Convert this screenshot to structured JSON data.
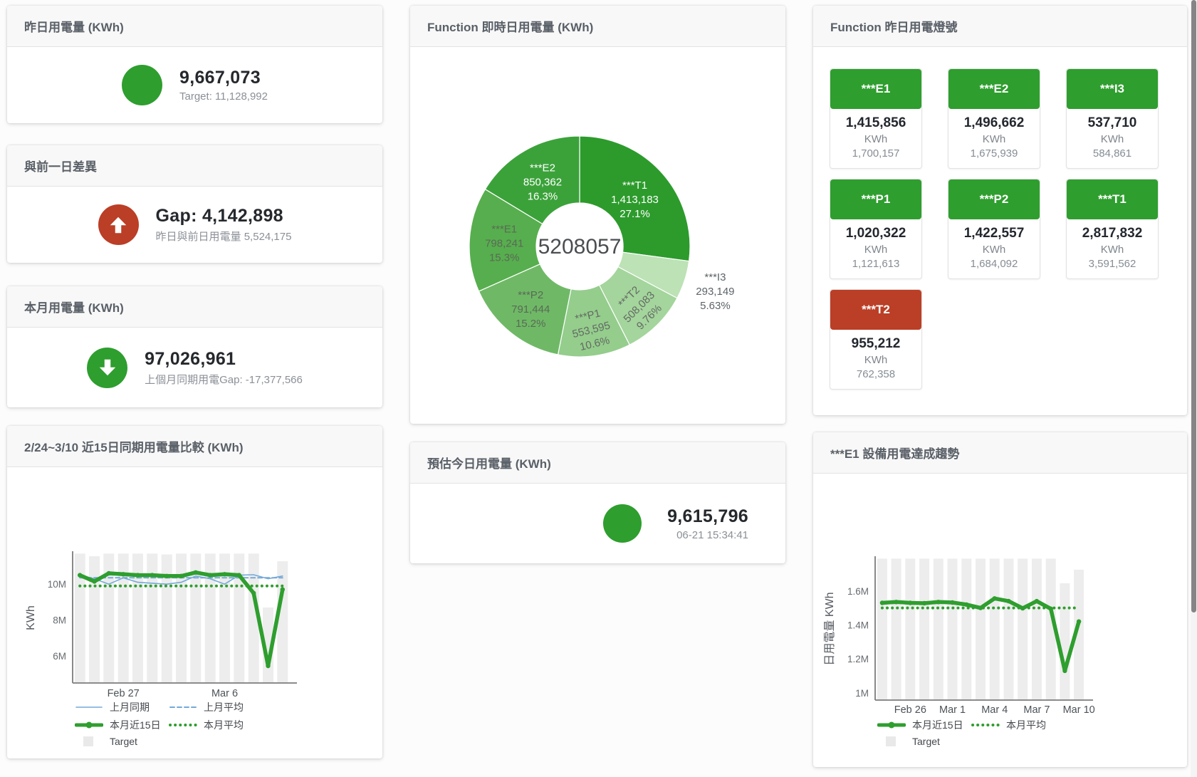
{
  "cards": {
    "yesterday": {
      "title": "昨日用電量 (KWh)",
      "value": "9,667,073",
      "subtitle": "Target: 11,128,992"
    },
    "day_gap": {
      "title": "與前一日差異",
      "value": "Gap: 4,142,898",
      "subtitle": "昨日與前日用電量 5,524,175"
    },
    "month": {
      "title": "本月用電量 (KWh)",
      "value": "97,026,961",
      "subtitle": "上個月同期用電Gap: -17,377,566"
    },
    "compare": {
      "title": "2/24~3/10 近15日同期用電量比較 (KWh)"
    },
    "realtime": {
      "title": "Function 即時日用電量 (KWh)"
    },
    "estimate": {
      "title": "預估今日用電量 (KWh)",
      "value": "9,615,796",
      "subtitle": "06-21 15:34:41"
    },
    "lights": {
      "title": "Function 昨日用電燈號"
    },
    "trend": {
      "title": "***E1 設備用電達成趨勢"
    }
  },
  "lights_tiles": [
    {
      "label": "***E1",
      "value": "1,415,856",
      "unit": "KWh",
      "target": "1,700,157",
      "status": "green"
    },
    {
      "label": "***E2",
      "value": "1,496,662",
      "unit": "KWh",
      "target": "1,675,939",
      "status": "green"
    },
    {
      "label": "***I3",
      "value": "537,710",
      "unit": "KWh",
      "target": "584,861",
      "status": "green"
    },
    {
      "label": "***P1",
      "value": "1,020,322",
      "unit": "KWh",
      "target": "1,121,613",
      "status": "green"
    },
    {
      "label": "***P2",
      "value": "1,422,557",
      "unit": "KWh",
      "target": "1,684,092",
      "status": "green"
    },
    {
      "label": "***T1",
      "value": "2,817,832",
      "unit": "KWh",
      "target": "3,591,562",
      "status": "green"
    },
    {
      "label": "***T2",
      "value": "955,212",
      "unit": "KWh",
      "target": "762,358",
      "status": "red"
    }
  ],
  "colors": {
    "green": "#2e9e2e",
    "red": "#bb3e26",
    "blue": "#74a9d8",
    "target_bar": "#ededed"
  },
  "chart_data": [
    {
      "type": "pie",
      "title": "Function 即時日用電量 (KWh)",
      "center_label": "5208057",
      "legend_position": "none",
      "slices": [
        {
          "name": "***T1",
          "value": 1413183,
          "value_label": "1,413,183",
          "pct_label": "27.1%",
          "color": "#2c9b2c",
          "label_color": "#ffffff",
          "label_r": 103
        },
        {
          "name": "***I3",
          "value": 293149,
          "value_label": "293,149",
          "pct_label": "5.63%",
          "color": "#bce2b6",
          "label_color": "#5d6468",
          "outside": true
        },
        {
          "name": "***T2",
          "value": 508083,
          "value_label": "508,083",
          "pct_label": "9.76%",
          "color": "#a4d59c",
          "label_color": "#636964",
          "label_r": 117,
          "rotate": -45
        },
        {
          "name": "***P1",
          "value": 553595,
          "value_label": "553,595",
          "pct_label": "10.6%",
          "color": "#94cd8c",
          "label_color": "#636964",
          "label_r": 116,
          "rotate": -14
        },
        {
          "name": "***P2",
          "value": 791444,
          "value_label": "791,444",
          "pct_label": "15.2%",
          "color": "#6fb966",
          "label_color": "#5a6a57",
          "label_r": 110
        },
        {
          "name": "***E1",
          "value": 798241,
          "value_label": "798,241",
          "pct_label": "15.3%",
          "color": "#57ae4e",
          "label_color": "#5a6a57",
          "label_r": 106
        },
        {
          "name": "***E2",
          "value": 850362,
          "value_label": "850,362",
          "pct_label": "16.3%",
          "color": "#3ba23a",
          "label_color": "#ffffff",
          "label_r": 106
        }
      ]
    },
    {
      "type": "line",
      "title": "2/24~3/10 近15日同期用電量比較 (KWh)",
      "ylabel": "KWh",
      "ylim": [
        4500000,
        11750000
      ],
      "yticks": [
        {
          "value": 6000000,
          "label": "6M"
        },
        {
          "value": 8000000,
          "label": "8M"
        },
        {
          "value": 10000000,
          "label": "10M"
        }
      ],
      "xticks": [
        {
          "index": 3,
          "label": "Feb 27"
        },
        {
          "index": 10,
          "label": "Mar 6"
        }
      ],
      "n_points": 15,
      "target_label": "Target",
      "target_bars": [
        11700000,
        11550000,
        11700000,
        11700000,
        11700000,
        11700000,
        11650000,
        11700000,
        11700000,
        11700000,
        11700000,
        11700000,
        11700000,
        8700000,
        11270000
      ],
      "series": [
        {
          "name": "上月同期",
          "color": "#74a9d8",
          "style": "solid",
          "width": 1.6,
          "values": [
            10500000,
            10300000,
            10000000,
            10350000,
            10100000,
            10050000,
            10000000,
            10100000,
            10450000,
            10300000,
            10000000,
            10500000,
            10520000,
            10300000,
            10450000
          ]
        },
        {
          "name": "上月平均",
          "color": "#74a9d8",
          "style": "dashed",
          "width": 2,
          "constant": 10350000
        },
        {
          "name": "本月近15日",
          "color": "#2e9e2e",
          "style": "solid",
          "width": 5.5,
          "markers": true,
          "values": [
            10500000,
            10150000,
            10600000,
            10550000,
            10500000,
            10500000,
            10450000,
            10450000,
            10650000,
            10500000,
            10550000,
            10500000,
            9500000,
            5450000,
            9700000
          ]
        },
        {
          "name": "本月平均",
          "color": "#2e9e2e",
          "style": "dotted",
          "width": 4,
          "constant": 9900000
        }
      ],
      "legend_rows": [
        [
          "series0",
          "series1"
        ],
        [
          "series2",
          "series3"
        ],
        [
          "target"
        ]
      ]
    },
    {
      "type": "line",
      "title": "***E1 設備用電達成趨勢",
      "ylabel": "日用電量 KWh",
      "ylim": [
        958000,
        1796000
      ],
      "yticks": [
        {
          "value": 1000000,
          "label": "1M"
        },
        {
          "value": 1200000,
          "label": "1.2M"
        },
        {
          "value": 1400000,
          "label": "1.4M"
        },
        {
          "value": 1600000,
          "label": "1.6M"
        }
      ],
      "xticks": [
        {
          "index": 2,
          "label": "Feb 26"
        },
        {
          "index": 5,
          "label": "Mar 1"
        },
        {
          "index": 8,
          "label": "Mar 4"
        },
        {
          "index": 11,
          "label": "Mar 7"
        },
        {
          "index": 14,
          "label": "Mar 10"
        }
      ],
      "n_points": 15,
      "target_label": "Target",
      "target_bars": [
        1790000,
        1790000,
        1790000,
        1790000,
        1790000,
        1790000,
        1790000,
        1790000,
        1790000,
        1790000,
        1790000,
        1790000,
        1790000,
        1645000,
        1725000
      ],
      "series": [
        {
          "name": "本月近15日",
          "color": "#2e9e2e",
          "style": "solid",
          "width": 5.5,
          "markers": true,
          "values": [
            1530000,
            1535000,
            1530000,
            1528000,
            1535000,
            1532000,
            1520000,
            1500000,
            1556000,
            1540000,
            1498000,
            1540000,
            1495000,
            1130000,
            1420000
          ]
        },
        {
          "name": "本月平均",
          "color": "#2e9e2e",
          "style": "dotted",
          "width": 4,
          "constant": 1500000
        }
      ],
      "legend_rows": [
        [
          "series0",
          "series1"
        ],
        [
          "target"
        ]
      ]
    }
  ]
}
